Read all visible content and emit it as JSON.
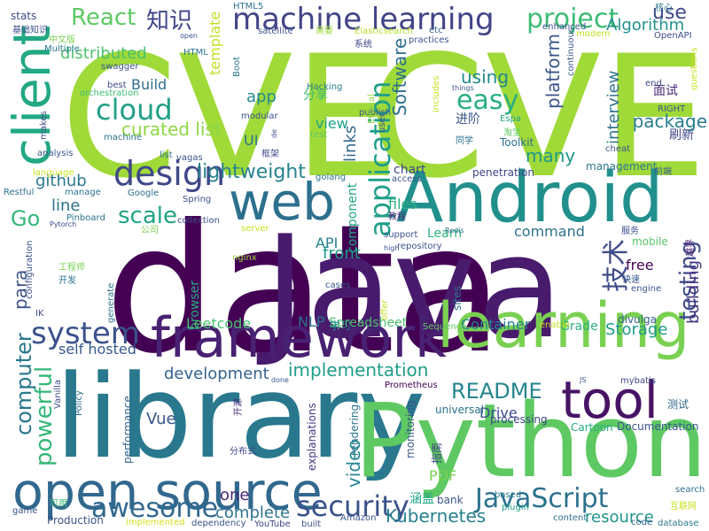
{
  "word_cloud": {
    "words": [
      {
        "text": "CVE",
        "color": "#a0da39"
      },
      {
        "text": "CVE",
        "color": "#a0da39"
      },
      {
        "text": "data",
        "color": "#440154"
      },
      {
        "text": "Java",
        "color": "#481b6d"
      },
      {
        "text": "library",
        "color": "#29788e"
      },
      {
        "text": "Python",
        "color": "#5ec962"
      },
      {
        "text": "Android",
        "color": "#21908d"
      },
      {
        "text": "framework",
        "color": "#482173"
      },
      {
        "text": "learning",
        "color": "#7ad151"
      },
      {
        "text": "web",
        "color": "#2d708e"
      },
      {
        "text": "client",
        "color": "#22a884"
      },
      {
        "text": "open source",
        "color": "#31688e"
      },
      {
        "text": "tool",
        "color": "#471365"
      },
      {
        "text": "machine learning",
        "color": "#414487"
      },
      {
        "text": "design",
        "color": "#3f4788"
      },
      {
        "text": "cloud",
        "color": "#1fa187"
      },
      {
        "text": "security",
        "color": "#3b528b"
      },
      {
        "text": "JavaScript",
        "color": "#2c728e"
      },
      {
        "text": "awesome",
        "color": "#31688e"
      },
      {
        "text": "application",
        "color": "#1f9e89"
      },
      {
        "text": "system",
        "color": "#3b528b"
      },
      {
        "text": "project",
        "color": "#3dbc74"
      },
      {
        "text": "testing",
        "color": "#3e4a89"
      },
      {
        "text": "easy",
        "color": "#2ab07f"
      },
      {
        "text": "powerful",
        "color": "#35b779"
      },
      {
        "text": "computer",
        "color": "#2a788e"
      },
      {
        "text": "React",
        "color": "#5ec962"
      },
      {
        "text": "Go",
        "color": "#35b779"
      },
      {
        "text": "scale",
        "color": "#20a486"
      },
      {
        "text": "技术",
        "color": "#3e4a89"
      },
      {
        "text": "知识",
        "color": "#404688"
      },
      {
        "text": "README",
        "color": "#25858e"
      },
      {
        "text": "Kubernetes",
        "color": "#27808e"
      },
      {
        "text": "lightweight",
        "color": "#26828e"
      },
      {
        "text": "video",
        "color": "#24868e"
      },
      {
        "text": "implementation",
        "color": "#1f9e89"
      },
      {
        "text": "development",
        "color": "#33638d"
      },
      {
        "text": "github",
        "color": "#2a788e"
      },
      {
        "text": "para",
        "color": "#3b528b"
      },
      {
        "text": "use",
        "color": "#3e4989"
      },
      {
        "text": "package",
        "color": "#287d8e"
      },
      {
        "text": "Storage",
        "color": "#1e9b8a"
      },
      {
        "text": "distributed",
        "color": "#4ac16d"
      },
      {
        "text": "using",
        "color": "#23898e"
      },
      {
        "text": "Software",
        "color": "#2e6f8e"
      },
      {
        "text": "line",
        "color": "#2c738e"
      },
      {
        "text": "front",
        "color": "#1f9a8a"
      },
      {
        "text": "curated list",
        "color": "#8fd744"
      },
      {
        "text": "complete",
        "color": "#2c728e"
      },
      {
        "text": "resource",
        "color": "#20928c"
      },
      {
        "text": "Container",
        "color": "#25848e"
      },
      {
        "text": "Algorithm",
        "color": "#21918c"
      },
      {
        "text": "many",
        "color": "#1f9a8a"
      },
      {
        "text": "links",
        "color": "#31688e"
      },
      {
        "text": "self hosted",
        "color": "#38598c"
      },
      {
        "text": "building",
        "color": "#46337f"
      },
      {
        "text": "interview",
        "color": "#2d708e"
      },
      {
        "text": "platform",
        "color": "#3a548c"
      },
      {
        "text": "files",
        "color": "#2ab07f"
      },
      {
        "text": "component",
        "color": "#21a685"
      },
      {
        "text": "free",
        "color": "#440154"
      },
      {
        "text": "Drive",
        "color": "#3c4f8a"
      },
      {
        "text": "one",
        "color": "#482878"
      },
      {
        "text": "command",
        "color": "#2d718e"
      },
      {
        "text": "Vue",
        "color": "#3a548c"
      },
      {
        "text": "PDF",
        "color": "#7ad151"
      },
      {
        "text": "API",
        "color": "#277f8e"
      },
      {
        "text": "UI",
        "color": "#2c738e"
      },
      {
        "text": "app",
        "color": "#23898e"
      },
      {
        "text": "view",
        "color": "#1fa187"
      },
      {
        "text": "Build",
        "color": "#2e6e8e"
      },
      {
        "text": "template",
        "color": "#c2df23"
      },
      {
        "text": "Learn",
        "color": "#31b57b"
      },
      {
        "text": "browser",
        "color": "#25ab82"
      },
      {
        "text": "Leetcode",
        "color": "#4ac16d"
      },
      {
        "text": "NLP",
        "color": "#2c728e"
      },
      {
        "text": "Spreadsheet",
        "color": "#4ac16d"
      },
      {
        "text": "Grade",
        "color": "#2ab07f"
      },
      {
        "text": "divulga",
        "color": "#355f8d"
      },
      {
        "text": "mobile",
        "color": "#54c568"
      },
      {
        "text": "management",
        "color": "#2b758e"
      },
      {
        "text": "chart",
        "color": "#3e4a89"
      },
      {
        "text": "penetration",
        "color": "#414487"
      },
      {
        "text": "Toolkit",
        "color": "#2e6e8e"
      },
      {
        "text": "Cartoon",
        "color": "#25ab82"
      },
      {
        "text": "Documentation",
        "color": "#39568c"
      },
      {
        "text": "processing",
        "color": "#3f4889"
      },
      {
        "text": "universal",
        "color": "#2c738e"
      },
      {
        "text": "Prometheus",
        "color": "#440154"
      },
      {
        "text": "explanations",
        "color": "#453781"
      },
      {
        "text": "performance",
        "color": "#33638d"
      },
      {
        "text": "rendering",
        "color": "#2c738e"
      },
      {
        "text": "monitoring",
        "color": "#39568c"
      },
      {
        "text": "Production",
        "color": "#3b528b"
      },
      {
        "text": "implemented",
        "color": "#d0e11c"
      },
      {
        "text": "dependency",
        "color": "#3a548c"
      },
      {
        "text": "YouTube",
        "color": "#3f4788"
      },
      {
        "text": "built",
        "color": "#3b528b"
      },
      {
        "text": "Amazon",
        "color": "#3b528b"
      },
      {
        "text": "content",
        "color": "#2e6f8e"
      },
      {
        "text": "code",
        "color": "#355f8d"
      },
      {
        "text": "database",
        "color": "#2a788e"
      },
      {
        "text": "game",
        "color": "#3b528b"
      },
      {
        "text": "based",
        "color": "#287c8e"
      },
      {
        "text": "plugin",
        "color": "#1f9e89"
      },
      {
        "text": "指南",
        "color": "#414487"
      },
      {
        "text": "bank",
        "color": "#3a548c"
      },
      {
        "text": "search",
        "color": "#2e6f8e"
      },
      {
        "text": "互联网",
        "color": "#c8e020"
      },
      {
        "text": "涵盖",
        "color": "#21a685"
      },
      {
        "text": "学习",
        "color": "#228c8d"
      },
      {
        "text": "测试",
        "color": "#31688e"
      },
      {
        "text": "面试",
        "color": "#482878"
      },
      {
        "text": "进阶",
        "color": "#39568c"
      },
      {
        "text": "刷新",
        "color": "#3e4a89"
      },
      {
        "text": "分享",
        "color": "#3dbc74"
      },
      {
        "text": "开源",
        "color": "#472d7b"
      },
      {
        "text": "可用",
        "color": "#3dbc74"
      },
      {
        "text": "分布式",
        "color": "#3e4a89"
      },
      {
        "text": "服务",
        "color": "#3b528b"
      },
      {
        "text": "前端",
        "color": "#355f8d"
      },
      {
        "text": "公司",
        "color": "#7ad151"
      },
      {
        "text": "框架",
        "color": "#3f4889"
      },
      {
        "text": "教程",
        "color": "#482878"
      },
      {
        "text": "快速",
        "color": "#39568c"
      },
      {
        "text": "越界",
        "color": "#481f70"
      },
      {
        "text": "核心",
        "color": "#2c728e"
      },
      {
        "text": "淘宝",
        "color": "#5ec962"
      },
      {
        "text": "同学",
        "color": "#2c728e"
      },
      {
        "text": "系统",
        "color": "#414487"
      },
      {
        "text": "需要",
        "color": "#9bd93c"
      },
      {
        "text": "基础知识",
        "color": "#3b528b"
      },
      {
        "text": "中文版",
        "color": "#7ad151"
      },
      {
        "text": "工程师",
        "color": "#7ad151"
      },
      {
        "text": "开发",
        "color": "#2c728e"
      },
      {
        "text": "analysis",
        "color": "#3a548c"
      },
      {
        "text": "stats",
        "color": "#3e4a89"
      },
      {
        "text": "HTML5",
        "color": "#2c728e"
      },
      {
        "text": "Elasticsearch",
        "color": "#b5de2b"
      },
      {
        "text": "etc",
        "color": "#355f8d"
      },
      {
        "text": "enhanced",
        "color": "#3b528b"
      },
      {
        "text": "modern",
        "color": "#c8e020"
      },
      {
        "text": "OpenAPI",
        "color": "#3e4a89"
      },
      {
        "text": "satellite",
        "color": "#3b528b"
      },
      {
        "text": "open",
        "color": "#3b528b"
      },
      {
        "text": "HTML",
        "color": "#2c728e"
      },
      {
        "text": "Boot",
        "color": "#2a788e"
      },
      {
        "text": "Multiple",
        "color": "#2a788e"
      },
      {
        "text": "swagger",
        "color": "#3b528b"
      },
      {
        "text": "best",
        "color": "#3e4a89"
      },
      {
        "text": "orchestration",
        "color": "#3dbc74"
      },
      {
        "text": "makes",
        "color": "#3e4a89"
      },
      {
        "text": "machine",
        "color": "#2c728e"
      },
      {
        "text": "Hacking",
        "color": "#287c8e"
      },
      {
        "text": "test",
        "color": "#5ec962"
      },
      {
        "text": "publish",
        "color": "#3b528b"
      },
      {
        "text": "modular",
        "color": "#3a548c"
      },
      {
        "text": "de",
        "color": "#3b528b"
      },
      {
        "text": "practices",
        "color": "#3a548c"
      },
      {
        "text": "includes",
        "color": "#c8e020"
      },
      {
        "text": "things",
        "color": "#3a548c"
      },
      {
        "text": "continuous",
        "color": "#3b528b"
      },
      {
        "text": "questions",
        "color": "#c8e020"
      },
      {
        "text": "end",
        "color": "#3e4a89"
      },
      {
        "text": "RIGHT",
        "color": "#3b528b"
      },
      {
        "text": "cheat",
        "color": "#3a548c"
      },
      {
        "text": "Espa",
        "color": "#20a486"
      },
      {
        "text": "user",
        "color": "#3b528b"
      },
      {
        "text": "Ethical",
        "color": "#8fd744"
      },
      {
        "text": "access",
        "color": "#3b528b"
      },
      {
        "text": "list",
        "color": "#2c728e"
      },
      {
        "text": "vagas",
        "color": "#3b528b"
      },
      {
        "text": "language",
        "color": "#c8e020"
      },
      {
        "text": "Restful",
        "color": "#2c728e"
      },
      {
        "text": "manage",
        "color": "#2c728e"
      },
      {
        "text": "Pinboard",
        "color": "#2c728e"
      },
      {
        "text": "Pytorch",
        "color": "#3e4a89"
      },
      {
        "text": "Google",
        "color": "#2e6e8e"
      },
      {
        "text": "Spring",
        "color": "#3b528b"
      },
      {
        "text": "collection",
        "color": "#3b528b"
      },
      {
        "text": "server",
        "color": "#c8e020"
      },
      {
        "text": "golang",
        "color": "#2c728e"
      },
      {
        "text": "support",
        "color": "#3b528b"
      },
      {
        "text": "Redis",
        "color": "#2c728e"
      },
      {
        "text": "repository",
        "color": "#3a548c"
      },
      {
        "text": "high",
        "color": "#3e4a89"
      },
      {
        "text": "configuration",
        "color": "#3b528b"
      },
      {
        "text": "nginx",
        "color": "#9bd93c"
      },
      {
        "text": "generate",
        "color": "#2c728e"
      },
      {
        "text": "cases",
        "color": "#3b528b"
      },
      {
        "text": "offer",
        "color": "#c8e020"
      },
      {
        "text": "sites",
        "color": "#2c728e"
      },
      {
        "text": "IK",
        "color": "#3e4a89"
      },
      {
        "text": "enable",
        "color": "#c8e020"
      },
      {
        "text": "Sequence",
        "color": "#5ec962"
      },
      {
        "text": "engine",
        "color": "#3a548c"
      },
      {
        "text": "Policy",
        "color": "#2c728e"
      },
      {
        "text": "Vanilla",
        "color": "#3e4a89"
      },
      {
        "text": "done",
        "color": "#3b528b"
      },
      {
        "text": "JS",
        "color": "#3a548c"
      },
      {
        "text": "mybatis",
        "color": "#3e4a89"
      }
    ]
  }
}
